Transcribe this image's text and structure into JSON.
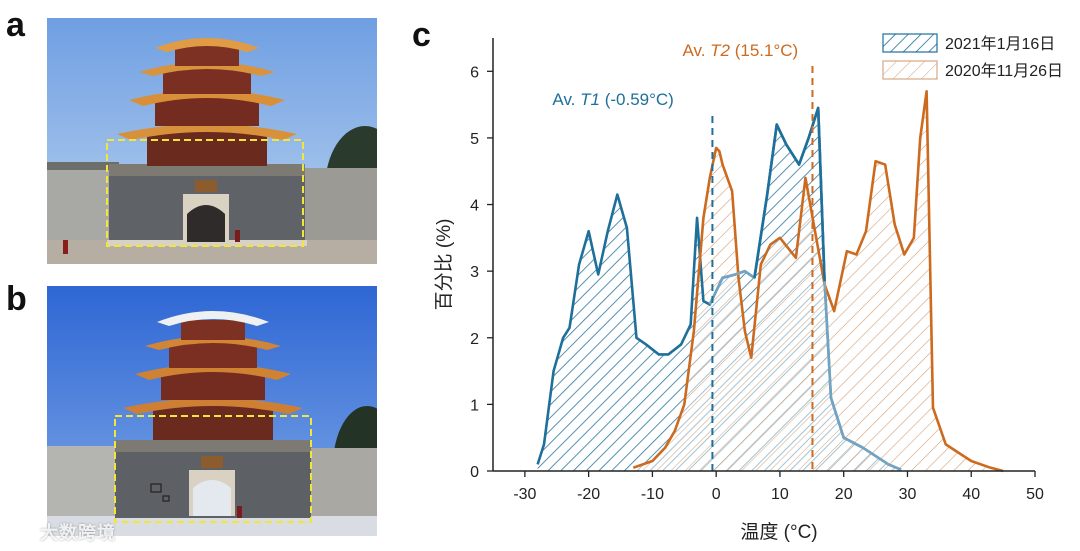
{
  "figure": {
    "panel_labels": [
      "a",
      "b",
      "c"
    ],
    "watermark": "大数跨境"
  },
  "photos": [
    {
      "label": "a",
      "subject": "multi-storey tower gate with highlighted region"
    },
    {
      "label": "b",
      "subject": "multi-storey tower gate with highlighted region and tile markers"
    }
  ],
  "colors": {
    "blue": "#1e6f9a",
    "orange": "#cc6a1f",
    "blue_fill_area": "#bed3e1",
    "orange_fill_area": "#f2e1d0",
    "box_dashed": "#f2e63a"
  },
  "chart_data": {
    "type": "area",
    "xlabel": "温度 (°C)",
    "ylabel": "百分比 (%)",
    "xlim": [
      -35,
      50
    ],
    "ylim": [
      0,
      6.5
    ],
    "xticks": [
      -30,
      -20,
      -10,
      0,
      10,
      20,
      30,
      40,
      50
    ],
    "yticks": [
      0,
      1,
      2,
      3,
      4,
      5,
      6
    ],
    "legend_position": "top-right",
    "series": [
      {
        "name": "2021年1月16日",
        "color": "#1e6f9a",
        "hatch": "dense",
        "mean_label_prefix": "Av. ",
        "mean_label_var": "T1",
        "mean_label_value": " (-0.59°C)",
        "mean": -0.59,
        "x": [
          -28,
          -27,
          -25.5,
          -24,
          -23,
          -21.5,
          -20,
          -18.5,
          -17,
          -15.5,
          -14,
          -12.5,
          -11,
          -9,
          -7.5,
          -5.5,
          -4,
          -3,
          -2,
          -1,
          1,
          3,
          4.5,
          6,
          8,
          9.5,
          11,
          13,
          14.5,
          16,
          17,
          18,
          20,
          23,
          27,
          29
        ],
        "y": [
          0.1,
          0.4,
          1.5,
          2.0,
          2.15,
          3.1,
          3.6,
          2.95,
          3.6,
          4.15,
          3.65,
          2.0,
          1.9,
          1.75,
          1.75,
          1.9,
          2.2,
          3.8,
          2.55,
          2.5,
          2.9,
          2.95,
          3.0,
          2.9,
          4.15,
          5.2,
          4.9,
          4.6,
          5.0,
          5.45,
          2.85,
          1.1,
          0.5,
          0.35,
          0.1,
          0.02
        ]
      },
      {
        "name": "2020年11月26日",
        "color": "#cc6a1f",
        "hatch": "sparse",
        "mean_label_prefix": "Av. ",
        "mean_label_var": "T2",
        "mean_label_value": " (15.1°C)",
        "mean": 15.1,
        "x": [
          -13,
          -10,
          -8,
          -6.5,
          -5,
          -3.5,
          -2,
          -1,
          0,
          0.5,
          1,
          2.5,
          3.5,
          4.5,
          5.5,
          7,
          8.5,
          10,
          12.5,
          14,
          15.5,
          17,
          18.5,
          20.5,
          22,
          23.5,
          25,
          26.5,
          28,
          29.5,
          31,
          32,
          33,
          34,
          36,
          40,
          43,
          45
        ],
        "y": [
          0.05,
          0.15,
          0.35,
          0.6,
          1.0,
          2.1,
          3.8,
          4.4,
          4.85,
          4.8,
          4.6,
          4.2,
          2.9,
          2.1,
          1.7,
          3.1,
          3.4,
          3.5,
          3.2,
          4.4,
          3.6,
          2.8,
          2.4,
          3.3,
          3.25,
          3.6,
          4.65,
          4.6,
          3.7,
          3.25,
          3.5,
          5.0,
          5.7,
          0.95,
          0.4,
          0.15,
          0.05,
          0.0
        ]
      }
    ]
  }
}
